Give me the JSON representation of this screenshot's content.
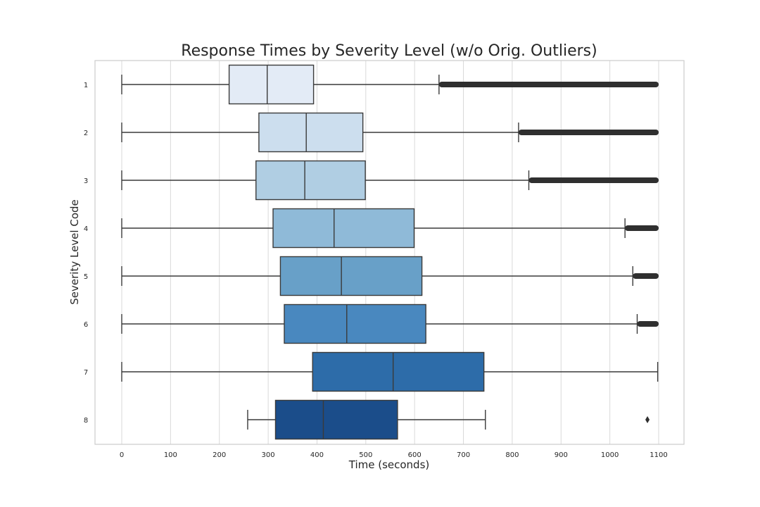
{
  "chart_data": {
    "type": "box",
    "orientation": "horizontal",
    "title": "Response Times by Severity Level (w/o Orig. Outliers)",
    "xlabel": "Time (seconds)",
    "ylabel": "Severity Level Code",
    "xlim": [
      -55,
      1155
    ],
    "xticks": [
      0,
      100,
      200,
      300,
      400,
      500,
      600,
      700,
      800,
      900,
      1000,
      1100
    ],
    "grid": "vertical",
    "categories": [
      "1",
      "2",
      "3",
      "4",
      "5",
      "6",
      "7",
      "8"
    ],
    "colors": [
      "#e3ebf6",
      "#ccdeee",
      "#b0cee3",
      "#8fbad8",
      "#68a0c8",
      "#4988bf",
      "#2d6ca9",
      "#1b4d8a"
    ],
    "boxes": [
      {
        "category": "1",
        "whisker_low": 0,
        "q1": 220,
        "median": 298,
        "q3": 393,
        "whisker_high": 650,
        "outliers_range": [
          650,
          1100
        ]
      },
      {
        "category": "2",
        "whisker_low": 0,
        "q1": 281,
        "median": 378,
        "q3": 494,
        "whisker_high": 813,
        "outliers_range": [
          813,
          1100
        ]
      },
      {
        "category": "3",
        "whisker_low": 0,
        "q1": 275,
        "median": 375,
        "q3": 499,
        "whisker_high": 834,
        "outliers_range": [
          834,
          1100
        ]
      },
      {
        "category": "4",
        "whisker_low": 0,
        "q1": 310,
        "median": 435,
        "q3": 599,
        "whisker_high": 1031,
        "outliers_range": [
          1031,
          1100
        ]
      },
      {
        "category": "5",
        "whisker_low": 0,
        "q1": 325,
        "median": 450,
        "q3": 615,
        "whisker_high": 1047,
        "outliers_range": [
          1047,
          1100
        ]
      },
      {
        "category": "6",
        "whisker_low": 0,
        "q1": 333,
        "median": 461,
        "q3": 623,
        "whisker_high": 1056,
        "outliers_range": [
          1056,
          1100
        ]
      },
      {
        "category": "7",
        "whisker_low": 0,
        "q1": 391,
        "median": 556,
        "q3": 742,
        "whisker_high": 1098,
        "outliers_range": null
      },
      {
        "category": "8",
        "whisker_low": 258,
        "q1": 315,
        "median": 413,
        "q3": 565,
        "whisker_high": 745,
        "outliers": [
          1077
        ]
      }
    ]
  }
}
